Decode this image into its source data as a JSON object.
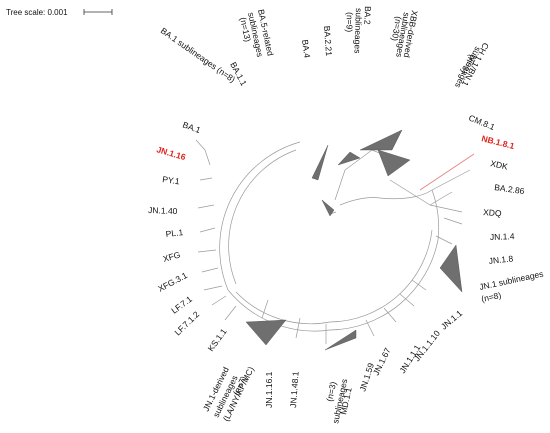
{
  "scale": {
    "text": "Tree scale: 0.001"
  },
  "labels": {
    "ba1_1": "BA.1.1",
    "ba1_sub": "BA.1 sublineages (n=8)",
    "ba5_line1": "BA.5-related",
    "ba5_line2": "sublineages",
    "ba5_line3": "(n=13)",
    "ba4": "BA.4",
    "ba2_21": "BA.2.21",
    "ba2_line1": "BA.2",
    "ba2_line2": "sublineages",
    "ba2_line3": "(n=9)",
    "xbb_line1": "XBB-derived",
    "xbb_line2": "sublineages",
    "xbb_line3": "(n=30)",
    "ch_line1": "CH.1.1/BN.1",
    "ch_line2": "sublineages",
    "ch_line3": "(n=3)",
    "cm8_1": "CM.8.1",
    "nb1_8_1": "NB.1.8.1",
    "xdk": "XDK",
    "ba2_86": "BA.2.86",
    "xdq": "XDQ",
    "jn1_4": "JN.1.4",
    "jn1_8": "JN.1.8",
    "jn1_sub_line1": "JN.1 sublineages",
    "jn1_sub_line2": "(n=8)",
    "jn1_1": "JN.1.1",
    "jn1_1_10": "JN.1.1.10",
    "jn1_1_1": "JN.1.1.1",
    "jn1_67": "JN.1.67",
    "jn1_59": "JN.1.59",
    "md_line1": "MD.1.1",
    "md_line2": "sublineages",
    "md_line3": "(n=3)",
    "jn1_48_1": "JN.1.48.1",
    "jn1_16_1": "JN.1.16.1",
    "jnd_line1": "JN.1-derived",
    "jnd_line2": "sublineages",
    "jnd_line3": "(LA/NY/KP/MC)",
    "jnd_line4": "(n=7)",
    "ks1_1": "KS.1.1",
    "lf7_1_2": "LF.7.1.2",
    "lf7_1": "LF.7.1",
    "xfg3_1": "XFG.3.1",
    "xfg": "XFG",
    "pl1": "PL.1",
    "jn1_40": "JN.1.40",
    "py1": "PY.1",
    "jn1_16": "JN.1.16",
    "ba1": "BA.1"
  },
  "colors": {
    "highlight": "#e0231c",
    "branch": "#9a9a9a",
    "clade": "#6f6f6f"
  }
}
